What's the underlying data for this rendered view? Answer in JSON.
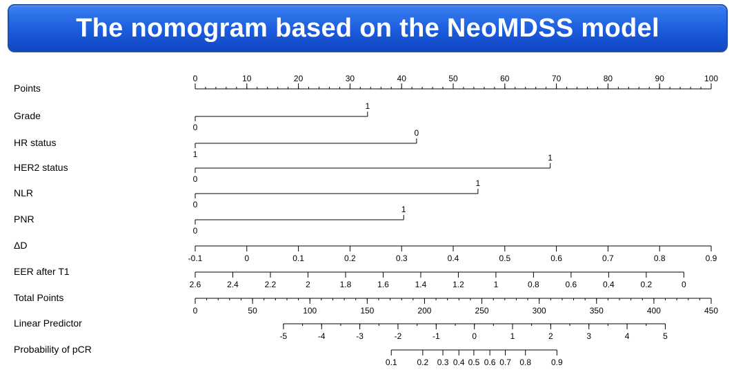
{
  "header": {
    "title": "The nomogram based on the NeoMDSS model"
  },
  "chart_data": {
    "type": "nomogram",
    "rows": [
      {
        "label": "Points",
        "domain": [
          0,
          100
        ],
        "labels_pos": "above",
        "ticks": [
          {
            "v": 0,
            "t": "0"
          },
          {
            "v": 10,
            "t": "10"
          },
          {
            "v": 20,
            "t": "20"
          },
          {
            "v": 30,
            "t": "30"
          },
          {
            "v": 40,
            "t": "40"
          },
          {
            "v": 50,
            "t": "50"
          },
          {
            "v": 60,
            "t": "60"
          },
          {
            "v": 70,
            "t": "70"
          },
          {
            "v": 80,
            "t": "80"
          },
          {
            "v": 90,
            "t": "90"
          },
          {
            "v": 100,
            "t": "100"
          }
        ],
        "minor": 50
      },
      {
        "label": "Grade",
        "type": "categorical",
        "points": [
          {
            "v": 0,
            "t": "0"
          },
          {
            "v": 33.4,
            "t": "1"
          }
        ]
      },
      {
        "label": "HR status",
        "type": "categorical",
        "points": [
          {
            "v": 0,
            "t": "1"
          },
          {
            "v": 42.9,
            "t": "0"
          }
        ]
      },
      {
        "label": "HER2 status",
        "type": "categorical",
        "points": [
          {
            "v": 0,
            "t": "0"
          },
          {
            "v": 68.8,
            "t": "1"
          }
        ]
      },
      {
        "label": "NLR",
        "type": "categorical",
        "points": [
          {
            "v": 0,
            "t": "0"
          },
          {
            "v": 54.8,
            "t": "1"
          }
        ]
      },
      {
        "label": "PNR",
        "type": "categorical",
        "points": [
          {
            "v": 0,
            "t": "0"
          },
          {
            "v": 40.4,
            "t": "1"
          }
        ]
      },
      {
        "label": "ΔD",
        "domain": [
          -0.1,
          0.9
        ],
        "labels_pos": "below",
        "ticks": [
          {
            "v": -0.1,
            "t": "-0.1"
          },
          {
            "v": 0,
            "t": "0"
          },
          {
            "v": 0.1,
            "t": "0.1"
          },
          {
            "v": 0.2,
            "t": "0.2"
          },
          {
            "v": 0.3,
            "t": "0.3"
          },
          {
            "v": 0.4,
            "t": "0.4"
          },
          {
            "v": 0.5,
            "t": "0.5"
          },
          {
            "v": 0.6,
            "t": "0.6"
          },
          {
            "v": 0.7,
            "t": "0.7"
          },
          {
            "v": 0.8,
            "t": "0.8"
          },
          {
            "v": 0.9,
            "t": "0.9"
          }
        ],
        "minor": 0
      },
      {
        "label": "EER after T1",
        "domain": [
          2.6,
          0
        ],
        "points_range": [
          0,
          94.7
        ],
        "labels_pos": "below",
        "ticks": [
          {
            "v": 2.6,
            "t": "2.6"
          },
          {
            "v": 2.4,
            "t": "2.4"
          },
          {
            "v": 2.2,
            "t": "2.2"
          },
          {
            "v": 2,
            "t": "2"
          },
          {
            "v": 1.8,
            "t": "1.8"
          },
          {
            "v": 1.6,
            "t": "1.6"
          },
          {
            "v": 1.4,
            "t": "1.4"
          },
          {
            "v": 1.2,
            "t": "1.2"
          },
          {
            "v": 1,
            "t": "1"
          },
          {
            "v": 0.8,
            "t": "0.8"
          },
          {
            "v": 0.6,
            "t": "0.6"
          },
          {
            "v": 0.4,
            "t": "0.4"
          },
          {
            "v": 0.2,
            "t": "0.2"
          },
          {
            "v": 0,
            "t": "0"
          }
        ],
        "minor": 0
      },
      {
        "label": "Total Points",
        "domain": [
          0,
          450
        ],
        "labels_pos": "below",
        "ticks": [
          {
            "v": 0,
            "t": "0"
          },
          {
            "v": 50,
            "t": "50"
          },
          {
            "v": 100,
            "t": "100"
          },
          {
            "v": 150,
            "t": "150"
          },
          {
            "v": 200,
            "t": "200"
          },
          {
            "v": 250,
            "t": "250"
          },
          {
            "v": 300,
            "t": "300"
          },
          {
            "v": 350,
            "t": "350"
          },
          {
            "v": 400,
            "t": "400"
          },
          {
            "v": 450,
            "t": "450"
          }
        ],
        "minor": 45
      },
      {
        "label": "Linear Predictor",
        "domain": [
          -5,
          5
        ],
        "points_range": [
          17.1,
          91.1
        ],
        "labels_pos": "below",
        "ticks": [
          {
            "v": -5,
            "t": "-5"
          },
          {
            "v": -4,
            "t": "-4"
          },
          {
            "v": -3,
            "t": "-3"
          },
          {
            "v": -2,
            "t": "-2"
          },
          {
            "v": -1,
            "t": "-1"
          },
          {
            "v": 0,
            "t": "0"
          },
          {
            "v": 1,
            "t": "1"
          },
          {
            "v": 2,
            "t": "2"
          },
          {
            "v": 3,
            "t": "3"
          },
          {
            "v": 4,
            "t": "4"
          },
          {
            "v": 5,
            "t": "5"
          }
        ],
        "minor": 20
      },
      {
        "label": "Probability of pCR",
        "type": "probability",
        "labels_pos": "below",
        "ticks": [
          {
            "v": 0.1,
            "t": "0.1",
            "p": 38.0
          },
          {
            "v": 0.2,
            "t": "0.2",
            "p": 44.1
          },
          {
            "v": 0.3,
            "t": "0.3",
            "p": 48.0
          },
          {
            "v": 0.4,
            "t": "0.4",
            "p": 51.1
          },
          {
            "v": 0.5,
            "t": "0.5",
            "p": 54.0
          },
          {
            "v": 0.6,
            "t": "0.6",
            "p": 57.1
          },
          {
            "v": 0.7,
            "t": "0.7",
            "p": 60.1
          },
          {
            "v": 0.8,
            "t": "0.8",
            "p": 64.0
          },
          {
            "v": 0.9,
            "t": "0.9",
            "p": 70.1
          }
        ]
      }
    ]
  }
}
